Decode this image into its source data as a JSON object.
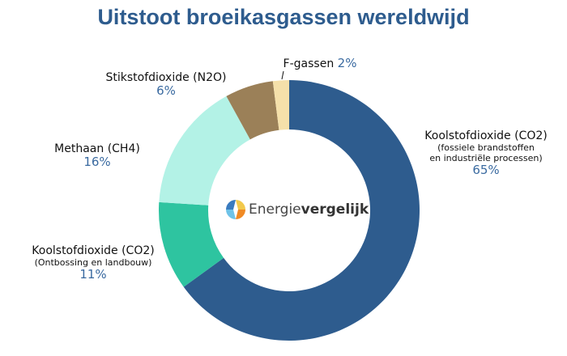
{
  "chart_data": {
    "type": "pie",
    "donut": true,
    "title": "Uitstoot broeikasgassen wereldwijd",
    "slices": [
      {
        "label": "Koolstofdioxide (CO2)",
        "sublabel": "(fossiele brandstoffen en industriële processen)",
        "sub1": "(fossiele brandstoffen",
        "sub2": "en industriële processen)",
        "value": 65,
        "pct": "65%",
        "color": "#2e5c8e"
      },
      {
        "label": "Koolstofdioxide (CO2)",
        "sublabel": "(Ontbossing en landbouw)",
        "value": 11,
        "pct": "11%",
        "color": "#2ec4a0"
      },
      {
        "label": "Methaan (CH4)",
        "value": 16,
        "pct": "16%",
        "color": "#b3f2e6"
      },
      {
        "label": "Stikstofdioxide (N2O)",
        "value": 6,
        "pct": "6%",
        "color": "#9b8058"
      },
      {
        "label": "F-gassen",
        "value": 2,
        "pct": "2%",
        "color": "#f5e0aa"
      }
    ],
    "start": "top",
    "direction": "clockwise"
  },
  "logo": {
    "part1": "Energie",
    "part2": "vergelijk"
  }
}
